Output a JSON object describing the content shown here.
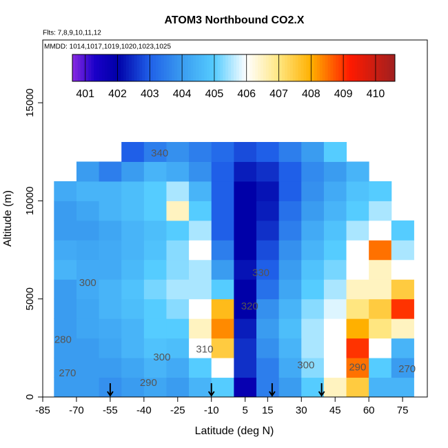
{
  "chart_data": {
    "type": "heatmap",
    "title": "ATOM3 Northbound CO2.X",
    "subtitle": "Flts: 7,8,9,10,11,12",
    "note": "MMDD: 1014,1017,1019,1020,1023,1025",
    "x_label": "Latitude (deg N)",
    "y_label": "Altitude (m)",
    "xlim": [
      -85,
      86
    ],
    "ylim": [
      0,
      18200
    ],
    "xticks": [
      -85,
      -70,
      -55,
      -40,
      -25,
      -10,
      5,
      15,
      30,
      45,
      60,
      75
    ],
    "yticks": [
      0,
      5000,
      10000,
      15000
    ],
    "x_bins": [
      -80,
      -70,
      -60,
      -50,
      -40,
      -30,
      -20,
      -10,
      0,
      10,
      20,
      30,
      40,
      50,
      60,
      70,
      80
    ],
    "y_bins": [
      0,
      1000,
      2000,
      3000,
      4000,
      5000,
      6000,
      7000,
      8000,
      9000,
      10000,
      11000,
      12000,
      13000
    ],
    "values": [
      [
        404,
        404,
        403.8,
        404,
        404.2,
        404,
        404.5,
        405,
        401.8,
        403.5,
        404,
        405,
        406.5,
        407.5,
        404.5,
        404.5
      ],
      [
        404,
        404,
        404,
        404.2,
        404.5,
        404.3,
        405,
        406,
        402.5,
        403.5,
        404.3,
        405.3,
        406,
        408.5,
        405,
        404
      ],
      [
        404,
        404,
        404.2,
        404.5,
        404.8,
        404.7,
        406,
        407.5,
        402.5,
        403.8,
        404.5,
        405.5,
        406,
        409,
        406,
        404.5
      ],
      [
        404,
        404.2,
        404.3,
        404.5,
        405,
        405,
        406.5,
        408.3,
        402.3,
        404,
        404.7,
        405.5,
        406,
        408,
        407,
        406.5
      ],
      [
        404,
        404.2,
        404.5,
        404.7,
        405,
        405.3,
        406,
        407.8,
        402,
        403.8,
        404.5,
        405.3,
        405.8,
        407,
        407.5,
        409
      ],
      [
        404,
        404.3,
        404.5,
        404.8,
        405.2,
        405.5,
        405.5,
        405,
        402,
        403.3,
        404.2,
        405,
        405.5,
        406.5,
        406.5,
        407.5
      ],
      [
        404.5,
        404.3,
        404.3,
        404.6,
        405,
        405.3,
        405.5,
        404,
        402.2,
        403,
        404,
        404.8,
        405.2,
        406,
        406.5,
        406
      ],
      [
        404.3,
        404.2,
        404.3,
        404.5,
        404.8,
        405.3,
        406,
        403.5,
        402,
        402.8,
        403.8,
        404.5,
        405,
        406,
        408.5,
        405.5
      ],
      [
        404,
        404,
        404.2,
        404.5,
        404.7,
        405,
        405.5,
        403,
        402,
        402.5,
        403.5,
        404.3,
        404.8,
        405.5,
        406,
        405
      ],
      [
        404,
        404.2,
        404.5,
        404.7,
        405,
        406.5,
        405,
        403,
        402,
        402.3,
        403.3,
        404,
        404.5,
        405,
        405.5,
        null
      ],
      [
        404.3,
        404.5,
        404.5,
        404.7,
        405,
        405.5,
        404.5,
        403,
        402,
        402.2,
        403,
        403.8,
        404.3,
        404.8,
        405,
        null
      ],
      [
        null,
        404,
        403.5,
        404,
        404.5,
        404.3,
        403.8,
        403,
        402.3,
        402.5,
        403,
        403.7,
        404,
        404.5,
        null,
        null
      ],
      [
        null,
        null,
        null,
        403,
        403.5,
        403.8,
        403.5,
        403.2,
        402.8,
        403,
        403.5,
        404,
        405,
        null,
        null,
        null
      ]
    ],
    "colorbar_lim": [
      400.6,
      410.6
    ],
    "colorbar_ticks": [
      401,
      402,
      403,
      404,
      405,
      406,
      407,
      408,
      409,
      410
    ],
    "colorscale": [
      [
        400.6,
        "#8a2be2"
      ],
      [
        401.3,
        "#1a00c8"
      ],
      [
        402,
        "#0000a8"
      ],
      [
        403,
        "#1f5fe8"
      ],
      [
        404,
        "#3a9cf0"
      ],
      [
        405,
        "#55ccff"
      ],
      [
        406,
        "#ffffff"
      ],
      [
        407,
        "#ffe680"
      ],
      [
        408,
        "#ffb000"
      ],
      [
        409.2,
        "#ff1a00"
      ],
      [
        410.6,
        "#a02020"
      ]
    ],
    "arrows": [
      -55,
      -10,
      17,
      39
    ],
    "annotations": [
      {
        "text": "340",
        "x": -33,
        "y": 12400
      },
      {
        "text": "330",
        "x": 12,
        "y": 6300
      },
      {
        "text": "320",
        "x": 7,
        "y": 4600
      },
      {
        "text": "310",
        "x": -13,
        "y": 2400
      },
      {
        "text": "300",
        "x": -65,
        "y": 5800
      },
      {
        "text": "300",
        "x": -32,
        "y": 2000
      },
      {
        "text": "300",
        "x": 32,
        "y": 1600
      },
      {
        "text": "290",
        "x": -38,
        "y": 700
      },
      {
        "text": "290",
        "x": 55,
        "y": 1500
      },
      {
        "text": "280",
        "x": -76,
        "y": 2900
      },
      {
        "text": "270",
        "x": -74,
        "y": 1200
      },
      {
        "text": "270",
        "x": 77,
        "y": 1400
      }
    ]
  }
}
